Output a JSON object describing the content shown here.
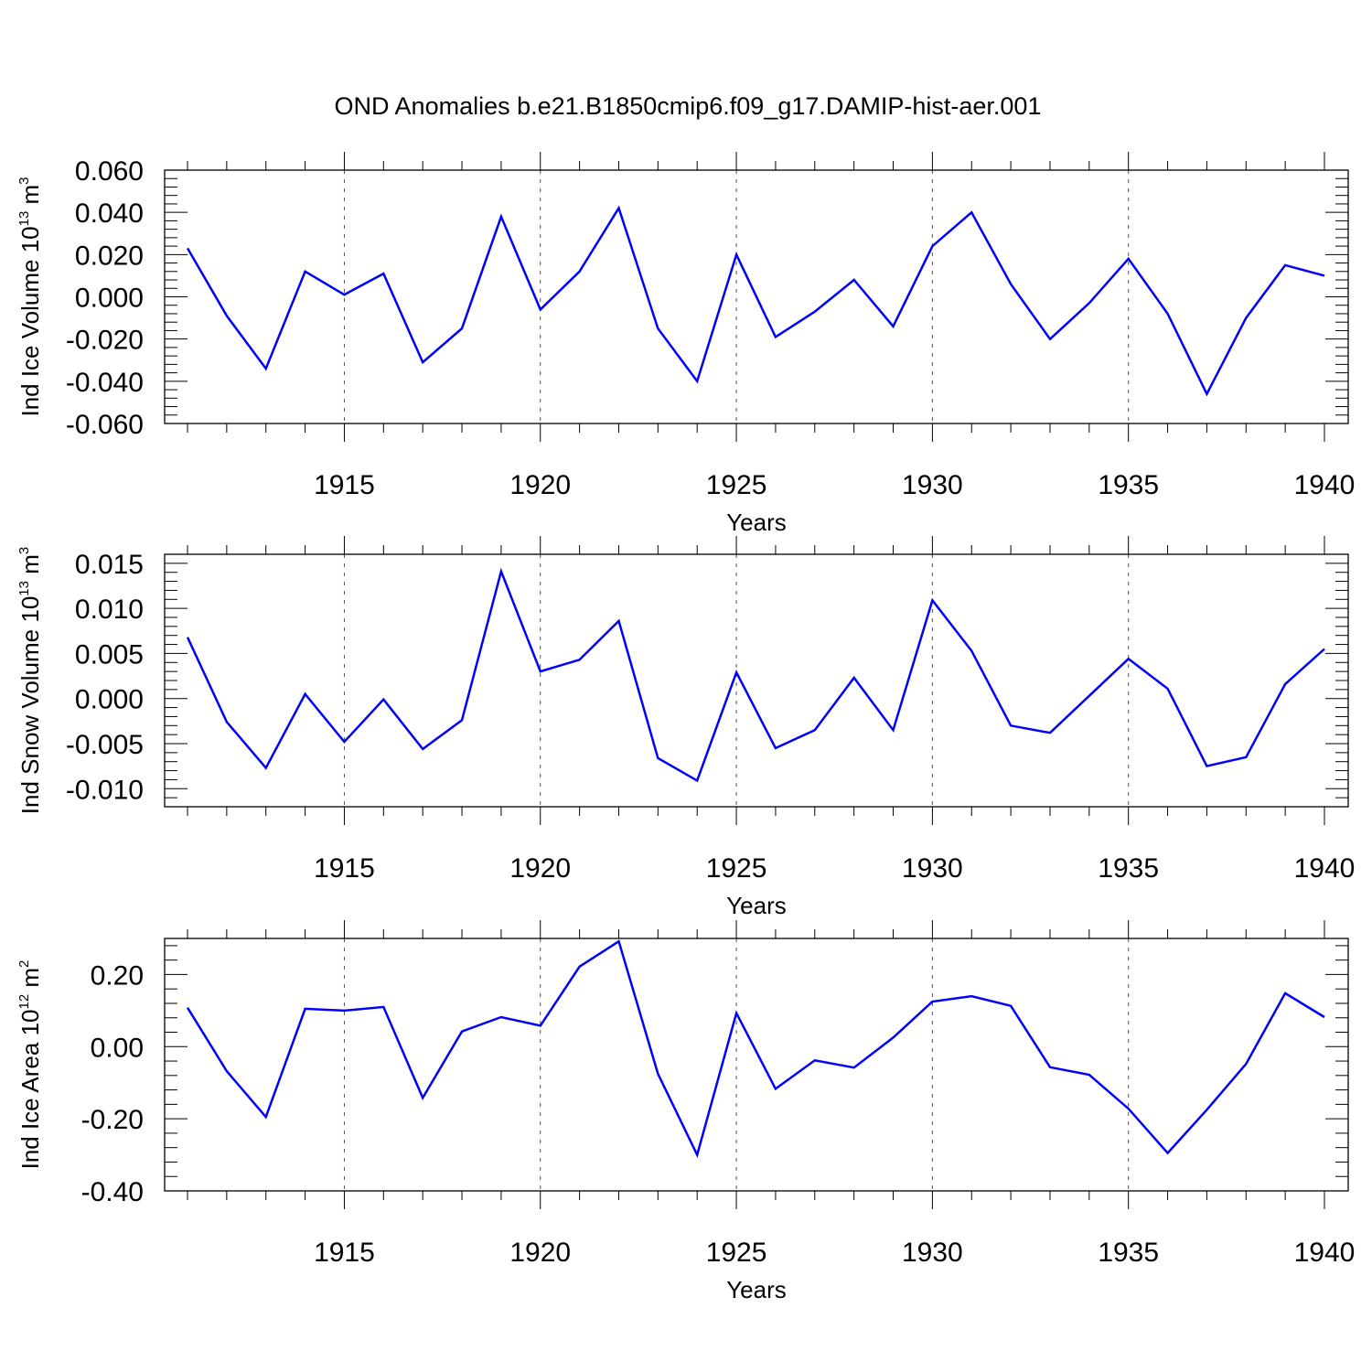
{
  "title": "OND Anomalies b.e21.B1850cmip6.f09_g17.DAMIP-hist-aer.001",
  "colors": {
    "line": "#0000ff",
    "axis": "#000000",
    "grid": "#555555",
    "background": "#ffffff"
  },
  "chart_data": [
    {
      "type": "line",
      "xlabel": "Years",
      "ylabel": {
        "text": "Ind Ice Volume 10",
        "exponent": "13",
        "unit": " m",
        "unit_exponent": "3"
      },
      "xlim": [
        1911,
        1940
      ],
      "ylim": [
        -0.06,
        0.06
      ],
      "x_ticks": [
        "1915",
        "1920",
        "1925",
        "1930",
        "1935",
        "1940"
      ],
      "y_ticks": [
        "0.060",
        "0.040",
        "0.020",
        "0.000",
        "-0.020",
        "-0.040",
        "-0.060"
      ],
      "grid": "vertical-dashed",
      "series": [
        {
          "x": [
            1911,
            1912,
            1913,
            1914,
            1915,
            1916,
            1917,
            1918,
            1919,
            1920,
            1921,
            1922,
            1923,
            1924,
            1925,
            1926,
            1927,
            1928,
            1929,
            1930,
            1931,
            1932,
            1933,
            1934,
            1935,
            1936,
            1937,
            1938,
            1939,
            1940
          ],
          "values": [
            0.023,
            -0.009,
            -0.034,
            0.012,
            0.001,
            0.011,
            -0.031,
            -0.015,
            0.038,
            -0.006,
            0.012,
            0.042,
            -0.015,
            -0.04,
            0.02,
            -0.019,
            -0.007,
            0.008,
            -0.014,
            0.024,
            0.04,
            0.006,
            -0.02,
            -0.003,
            0.018,
            -0.008,
            -0.046,
            -0.01,
            0.015,
            0.01
          ]
        }
      ]
    },
    {
      "type": "line",
      "xlabel": "Years",
      "ylabel": {
        "text": "Ind Snow Volume 10",
        "exponent": "13",
        "unit": " m",
        "unit_exponent": "3"
      },
      "xlim": [
        1911,
        1940
      ],
      "ylim": [
        -0.012,
        0.016
      ],
      "x_ticks": [
        "1915",
        "1920",
        "1925",
        "1930",
        "1935",
        "1940"
      ],
      "y_ticks": [
        "0.015",
        "0.010",
        "0.005",
        "0.000",
        "-0.005",
        "-0.010"
      ],
      "grid": "vertical-dashed",
      "series": [
        {
          "x": [
            1911,
            1912,
            1913,
            1914,
            1915,
            1916,
            1917,
            1918,
            1919,
            1920,
            1921,
            1922,
            1923,
            1924,
            1925,
            1926,
            1927,
            1928,
            1929,
            1930,
            1931,
            1932,
            1933,
            1934,
            1935,
            1936,
            1937,
            1938,
            1939,
            1940
          ],
          "values": [
            0.0068,
            -0.0026,
            -0.0077,
            0.0005,
            -0.0048,
            -0.0001,
            -0.0056,
            -0.0024,
            0.0141,
            0.003,
            0.0043,
            0.0086,
            -0.0066,
            -0.0091,
            0.0029,
            -0.0055,
            -0.0035,
            0.0023,
            -0.0035,
            0.0109,
            0.0053,
            -0.003,
            -0.0038,
            0.0003,
            0.0044,
            0.0011,
            -0.0075,
            -0.0065,
            0.0016,
            0.0055
          ]
        }
      ]
    },
    {
      "type": "line",
      "xlabel": "Years",
      "ylabel": {
        "text": "Ind Ice Area 10",
        "exponent": "12",
        "unit": " m",
        "unit_exponent": "2"
      },
      "xlim": [
        1911,
        1940
      ],
      "ylim": [
        -0.4,
        0.3
      ],
      "x_ticks": [
        "1915",
        "1920",
        "1925",
        "1930",
        "1935",
        "1940"
      ],
      "y_ticks": [
        "0.20",
        "0.00",
        "-0.20",
        "-0.40"
      ],
      "grid": "vertical-dashed",
      "series": [
        {
          "x": [
            1911,
            1912,
            1913,
            1914,
            1915,
            1916,
            1917,
            1918,
            1919,
            1920,
            1921,
            1922,
            1923,
            1924,
            1925,
            1926,
            1927,
            1928,
            1929,
            1930,
            1931,
            1932,
            1933,
            1934,
            1935,
            1936,
            1937,
            1938,
            1939,
            1940
          ],
          "values": [
            0.108,
            -0.068,
            -0.195,
            0.105,
            0.1,
            0.11,
            -0.142,
            0.042,
            0.082,
            0.058,
            0.222,
            0.292,
            -0.075,
            -0.3,
            0.093,
            -0.117,
            -0.038,
            -0.058,
            0.025,
            0.125,
            0.14,
            0.113,
            -0.057,
            -0.078,
            -0.172,
            -0.295,
            -0.175,
            -0.048,
            0.148,
            0.082
          ]
        }
      ]
    }
  ]
}
